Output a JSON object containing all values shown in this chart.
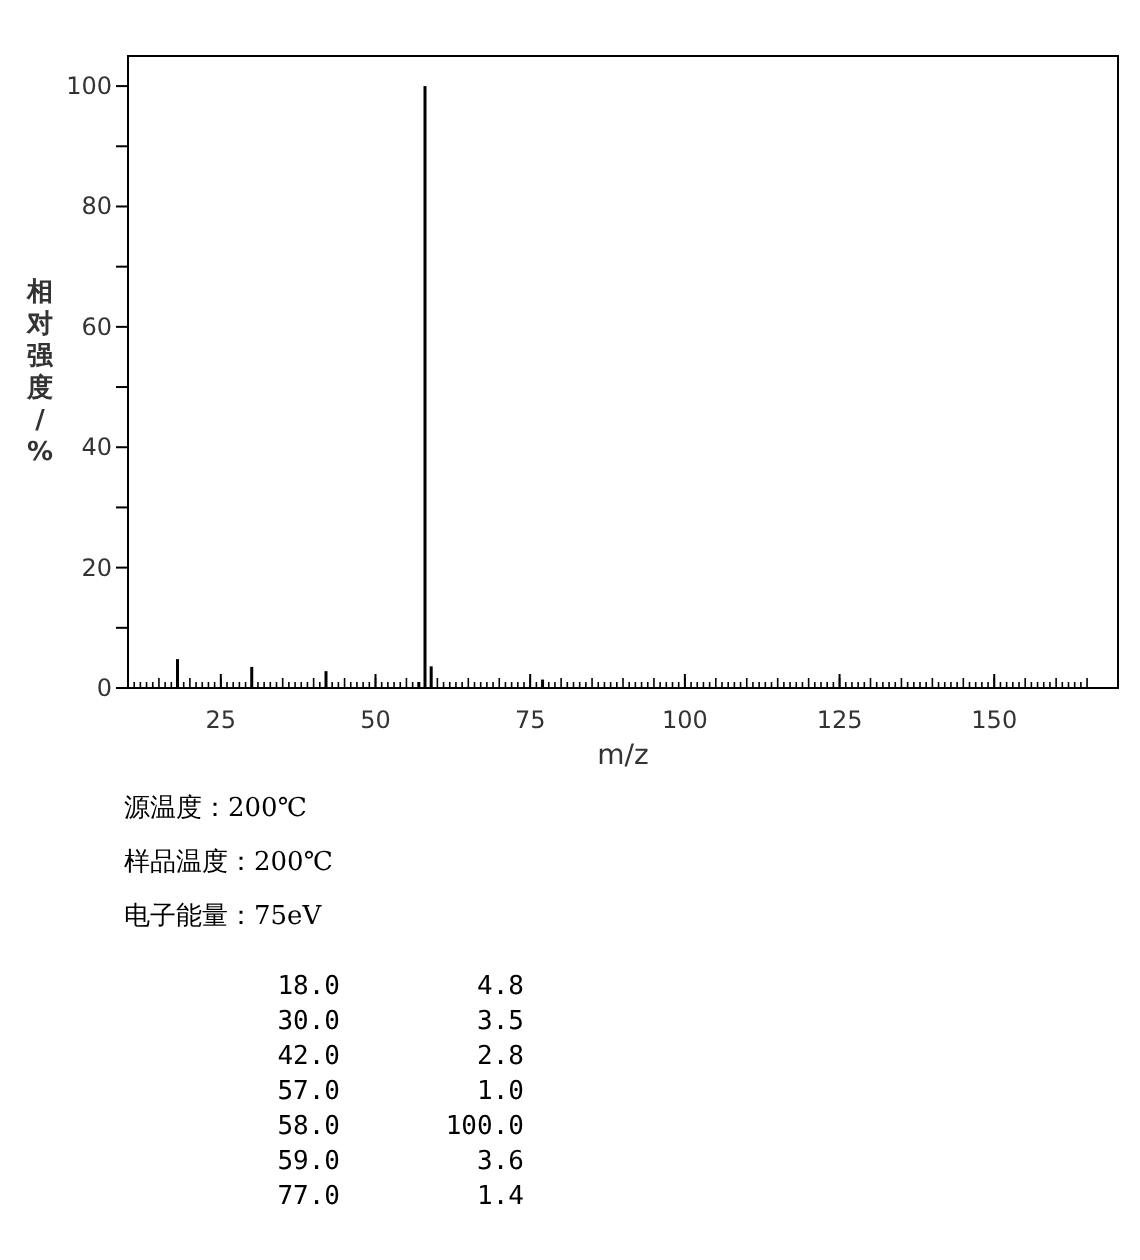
{
  "chart_data": {
    "type": "bar",
    "xlabel": "m/z",
    "ylabel": "相对强度/%",
    "x": [
      18,
      30,
      42,
      57,
      58,
      59,
      77
    ],
    "values": [
      4.8,
      3.5,
      2.8,
      1.0,
      100.0,
      3.6,
      1.4
    ],
    "color": "#000000",
    "xlim": [
      10,
      170
    ],
    "xticks": [
      25,
      50,
      75,
      100,
      125,
      150
    ],
    "ylim": [
      0,
      105
    ],
    "yticks": [
      0,
      {
        "value": 10,
        "label": null
      },
      20,
      {
        "value": 30,
        "label": null
      },
      40,
      {
        "value": 50,
        "label": null
      },
      60,
      {
        "value": 70,
        "label": null
      },
      80,
      {
        "value": 90,
        "label": null
      },
      100
    ],
    "annotations": [
      "源温度：200℃",
      "样品温度：200℃",
      "电子能量：75eV",
      "18.0",
      "4.8",
      "30.0",
      "3.5",
      "42.0",
      "2.8",
      "57.0",
      "1.0",
      "58.0",
      "100.0",
      "59.0",
      "3.6",
      "77.0",
      "1.4"
    ]
  }
}
